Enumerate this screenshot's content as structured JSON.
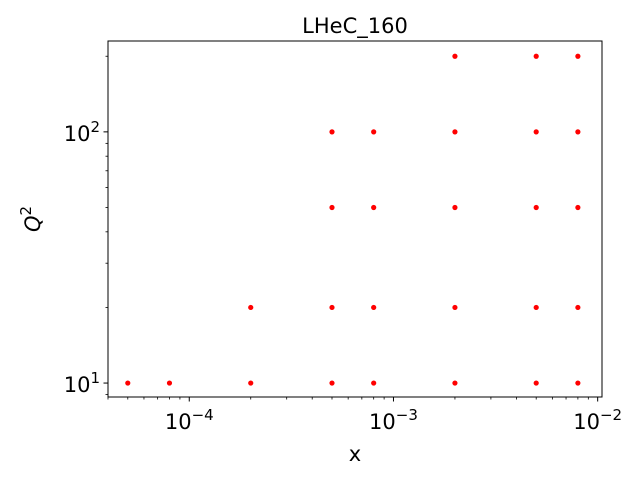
{
  "chart_data": {
    "type": "scatter",
    "title": "LHeC_160",
    "xlabel": "x",
    "ylabel_base": "Q",
    "ylabel_exp": "2",
    "xscale": "log",
    "yscale": "log",
    "xlim": [
      4e-05,
      0.0105
    ],
    "ylim": [
      8.8,
      230
    ],
    "grid": false,
    "marker_color": "#ff0000",
    "x_ticks": [
      {
        "value": 0.0001,
        "base": "10",
        "exp": "−4"
      },
      {
        "value": 0.001,
        "base": "10",
        "exp": "−3"
      },
      {
        "value": 0.01,
        "base": "10",
        "exp": "−2"
      }
    ],
    "y_ticks": [
      {
        "value": 10,
        "base": "10",
        "exp": "1"
      },
      {
        "value": 100,
        "base": "10",
        "exp": "2"
      }
    ],
    "points": [
      {
        "x": 5e-05,
        "y": 10
      },
      {
        "x": 8e-05,
        "y": 10
      },
      {
        "x": 0.0002,
        "y": 10
      },
      {
        "x": 0.0002,
        "y": 20
      },
      {
        "x": 0.0005,
        "y": 10
      },
      {
        "x": 0.0005,
        "y": 20
      },
      {
        "x": 0.0005,
        "y": 50
      },
      {
        "x": 0.0005,
        "y": 100
      },
      {
        "x": 0.0008,
        "y": 10
      },
      {
        "x": 0.0008,
        "y": 20
      },
      {
        "x": 0.0008,
        "y": 50
      },
      {
        "x": 0.0008,
        "y": 100
      },
      {
        "x": 0.002,
        "y": 10
      },
      {
        "x": 0.002,
        "y": 20
      },
      {
        "x": 0.002,
        "y": 50
      },
      {
        "x": 0.002,
        "y": 100
      },
      {
        "x": 0.002,
        "y": 200
      },
      {
        "x": 0.005,
        "y": 10
      },
      {
        "x": 0.005,
        "y": 20
      },
      {
        "x": 0.005,
        "y": 50
      },
      {
        "x": 0.005,
        "y": 100
      },
      {
        "x": 0.005,
        "y": 200
      },
      {
        "x": 0.008,
        "y": 10
      },
      {
        "x": 0.008,
        "y": 20
      },
      {
        "x": 0.008,
        "y": 50
      },
      {
        "x": 0.008,
        "y": 100
      },
      {
        "x": 0.008,
        "y": 200
      }
    ]
  }
}
